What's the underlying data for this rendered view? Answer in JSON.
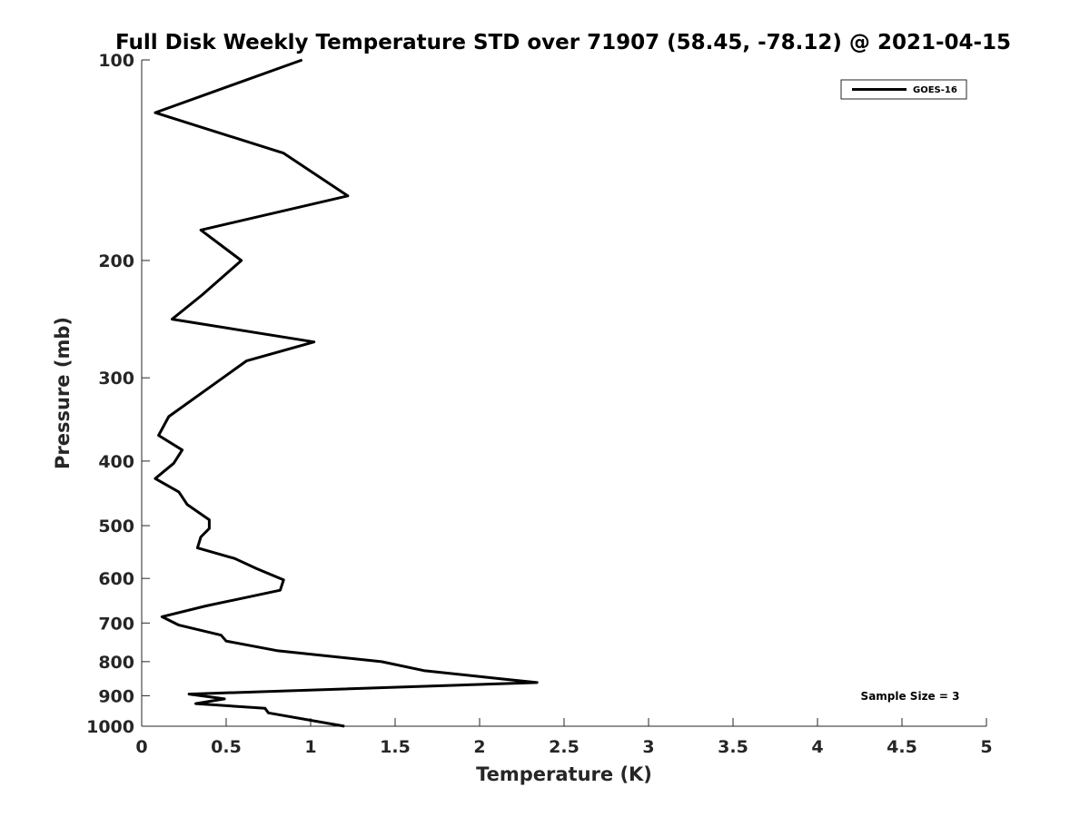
{
  "chart_data": {
    "type": "line",
    "title": "Full Disk Weekly Temperature STD over 71907 (58.45, -78.12) @ 2021-04-15",
    "xlabel": "Temperature (K)",
    "ylabel": "Pressure (mb)",
    "xlim": [
      0,
      5
    ],
    "ylim": [
      100,
      1000
    ],
    "y_scale": "log",
    "y_reversed": true,
    "x_ticks": [
      "0",
      "0.5",
      "1",
      "1.5",
      "2",
      "2.5",
      "3",
      "3.5",
      "4",
      "4.5",
      "5"
    ],
    "y_ticks": [
      "100",
      "200",
      "300",
      "400",
      "500",
      "600",
      "700",
      "800",
      "900",
      "1000"
    ],
    "grid": false,
    "legend_position": "top-right",
    "series": [
      {
        "name": "GOES-16",
        "color": "#000000",
        "points": [
          [
            0.95,
            100
          ],
          [
            0.08,
            120
          ],
          [
            0.84,
            138
          ],
          [
            1.22,
            160
          ],
          [
            0.35,
            180
          ],
          [
            0.59,
            200
          ],
          [
            0.36,
            225
          ],
          [
            0.18,
            245
          ],
          [
            1.02,
            265
          ],
          [
            0.62,
            283
          ],
          [
            0.16,
            343
          ],
          [
            0.1,
            366
          ],
          [
            0.24,
            385
          ],
          [
            0.19,
            403
          ],
          [
            0.08,
            425
          ],
          [
            0.22,
            445
          ],
          [
            0.27,
            465
          ],
          [
            0.4,
            490
          ],
          [
            0.4,
            505
          ],
          [
            0.35,
            520
          ],
          [
            0.33,
            540
          ],
          [
            0.55,
            560
          ],
          [
            0.68,
            580
          ],
          [
            0.84,
            603
          ],
          [
            0.82,
            625
          ],
          [
            0.38,
            660
          ],
          [
            0.12,
            685
          ],
          [
            0.22,
            705
          ],
          [
            0.47,
            730
          ],
          [
            0.5,
            745
          ],
          [
            0.8,
            770
          ],
          [
            1.42,
            800
          ],
          [
            1.67,
            825
          ],
          [
            2.15,
            850
          ],
          [
            2.34,
            860
          ],
          [
            0.28,
            895
          ],
          [
            0.49,
            910
          ],
          [
            0.32,
            925
          ],
          [
            0.73,
            940
          ],
          [
            0.75,
            955
          ],
          [
            1.2,
            1000
          ]
        ]
      }
    ],
    "annotation": "Sample Size = 3"
  }
}
